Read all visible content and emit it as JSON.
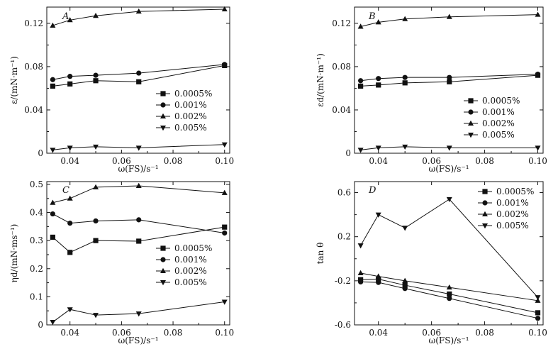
{
  "chart_data": [
    {
      "type": "line",
      "title": "A",
      "xlabel": "ω(FS)/s⁻¹",
      "ylabel": "ε/(mN·m⁻¹)",
      "xlim": [
        0.031,
        0.102
      ],
      "ylim": [
        0,
        0.135
      ],
      "xticks": [
        0.04,
        0.06,
        0.08,
        0.1
      ],
      "xtick_labels": [
        "0.04",
        "0.06",
        "0.08",
        "0.10"
      ],
      "yticks": [
        0,
        0.04,
        0.08,
        0.12
      ],
      "ytick_labels": [
        "0",
        "0.04",
        "0.08",
        "0.12"
      ],
      "legend": "center-right",
      "x": [
        0.0333,
        0.04,
        0.05,
        0.0667,
        0.1
      ],
      "series": [
        {
          "name": "0.0005%",
          "marker": "square",
          "values": [
            0.062,
            0.064,
            0.067,
            0.066,
            0.081
          ]
        },
        {
          "name": "0.001%",
          "marker": "circle",
          "values": [
            0.068,
            0.071,
            0.072,
            0.074,
            0.082
          ]
        },
        {
          "name": "0.002%",
          "marker": "triangle-up",
          "values": [
            0.118,
            0.123,
            0.127,
            0.131,
            0.133
          ]
        },
        {
          "name": "0.005%",
          "marker": "triangle-down",
          "values": [
            0.003,
            0.005,
            0.006,
            0.005,
            0.008
          ]
        }
      ]
    },
    {
      "type": "line",
      "title": "B",
      "xlabel": "ω(FS)/s⁻¹",
      "ylabel": "εd/(mN·m⁻¹)",
      "xlim": [
        0.031,
        0.102
      ],
      "ylim": [
        0,
        0.135
      ],
      "xticks": [
        0.04,
        0.06,
        0.08,
        0.1
      ],
      "xtick_labels": [
        "0.04",
        "0.06",
        "0.08",
        "0.10"
      ],
      "yticks": [
        0,
        0.04,
        0.08,
        0.12
      ],
      "ytick_labels": [
        "0",
        "0.04",
        "0.08",
        "0.12"
      ],
      "legend": "center-right",
      "x": [
        0.0333,
        0.04,
        0.05,
        0.0667,
        0.1
      ],
      "series": [
        {
          "name": "0.0005%",
          "marker": "square",
          "values": [
            0.062,
            0.063,
            0.065,
            0.066,
            0.072
          ]
        },
        {
          "name": "0.001%",
          "marker": "circle",
          "values": [
            0.067,
            0.069,
            0.07,
            0.07,
            0.073
          ]
        },
        {
          "name": "0.002%",
          "marker": "triangle-up",
          "values": [
            0.117,
            0.121,
            0.124,
            0.126,
            0.128
          ]
        },
        {
          "name": "0.005%",
          "marker": "triangle-down",
          "values": [
            0.003,
            0.005,
            0.006,
            0.005,
            0.005
          ]
        }
      ]
    },
    {
      "type": "line",
      "title": "C",
      "xlabel": "ω(FS)/s⁻¹",
      "ylabel": "ηd/(mN·ms⁻¹)",
      "xlim": [
        0.031,
        0.102
      ],
      "ylim": [
        0,
        0.51
      ],
      "xticks": [
        0.04,
        0.06,
        0.08,
        0.1
      ],
      "xtick_labels": [
        "0.04",
        "0.06",
        "0.08",
        "0.10"
      ],
      "yticks": [
        0,
        0.1,
        0.2,
        0.3,
        0.4,
        0.5
      ],
      "ytick_labels": [
        "0",
        "0.1",
        "0.2",
        "0.3",
        "0.4",
        "0.5"
      ],
      "legend": "center-right",
      "x": [
        0.0333,
        0.04,
        0.05,
        0.0667,
        0.1
      ],
      "series": [
        {
          "name": "0.0005%",
          "marker": "square",
          "values": [
            0.312,
            0.258,
            0.3,
            0.298,
            0.348
          ]
        },
        {
          "name": "0.001%",
          "marker": "circle",
          "values": [
            0.395,
            0.362,
            0.37,
            0.374,
            0.327
          ]
        },
        {
          "name": "0.002%",
          "marker": "triangle-up",
          "values": [
            0.435,
            0.45,
            0.49,
            0.495,
            0.47
          ]
        },
        {
          "name": "0.005%",
          "marker": "triangle-down",
          "values": [
            0.01,
            0.055,
            0.035,
            0.04,
            0.082
          ]
        }
      ]
    },
    {
      "type": "line",
      "title": "D",
      "xlabel": "ω(FS)/s⁻¹",
      "ylabel": "tan θ",
      "xlim": [
        0.031,
        0.102
      ],
      "ylim": [
        -0.6,
        0.7
      ],
      "xticks": [
        0.04,
        0.06,
        0.08,
        0.1
      ],
      "xtick_labels": [
        "0.04",
        "0.06",
        "0.08",
        "0.10"
      ],
      "yticks": [
        -0.6,
        -0.2,
        0.2,
        0.6
      ],
      "ytick_labels": [
        "-0.6",
        "-0.2",
        "0.2",
        "0.6"
      ],
      "legend": "top-right",
      "x": [
        0.0333,
        0.04,
        0.05,
        0.0667,
        0.1
      ],
      "series": [
        {
          "name": "0.0005%",
          "marker": "square",
          "values": [
            -0.19,
            -0.185,
            -0.24,
            -0.32,
            -0.49
          ]
        },
        {
          "name": "0.001%",
          "marker": "circle",
          "values": [
            -0.21,
            -0.215,
            -0.27,
            -0.36,
            -0.54
          ]
        },
        {
          "name": "0.002%",
          "marker": "triangle-up",
          "values": [
            -0.13,
            -0.16,
            -0.2,
            -0.26,
            -0.38
          ]
        },
        {
          "name": "0.005%",
          "marker": "triangle-down",
          "values": [
            0.12,
            0.4,
            0.28,
            0.54,
            -0.35
          ]
        }
      ]
    }
  ]
}
